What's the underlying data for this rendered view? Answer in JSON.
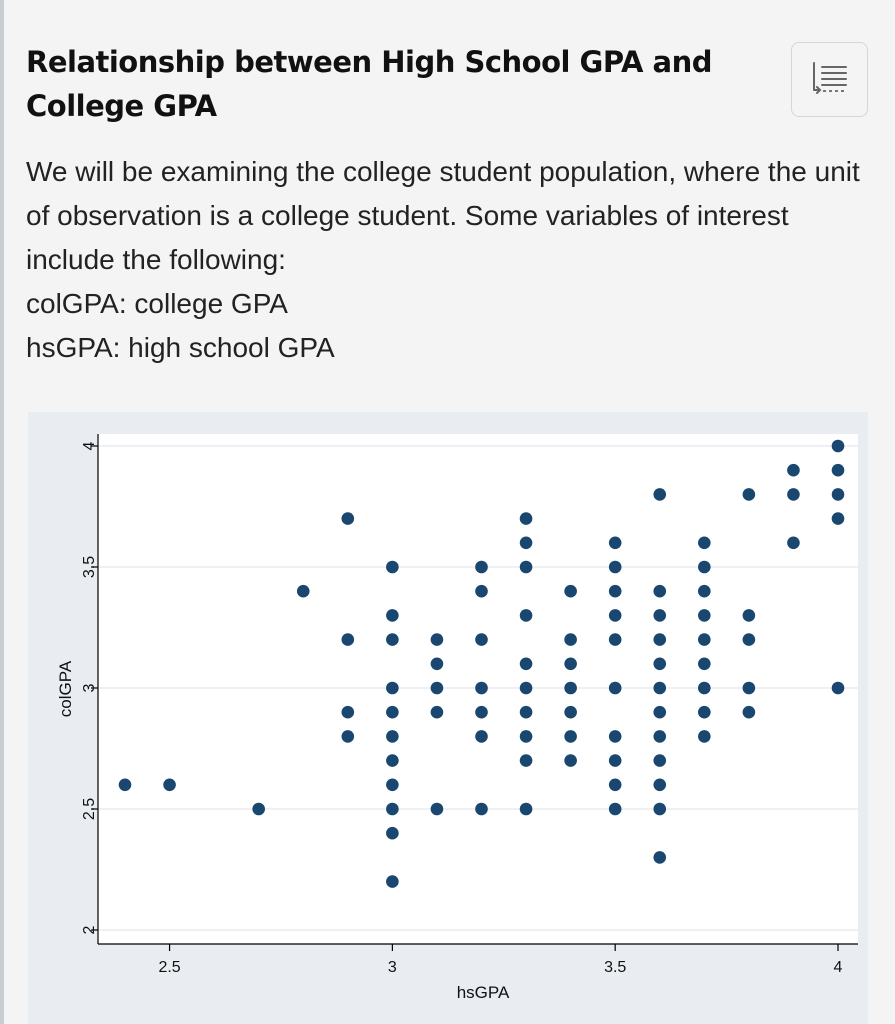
{
  "header": {
    "title": "Relationship between High School GPA and College GPA",
    "toc_button": {
      "icon": "table-of-contents-icon"
    }
  },
  "content": {
    "intro": "We will be examining the college student population, where the unit of observation is a college student. Some variables of interest include the following:",
    "variables": [
      "colGPA: college GPA",
      "hsGPA: high school GPA"
    ]
  },
  "chart_data": {
    "type": "scatter",
    "xlabel": "hsGPA",
    "ylabel": "colGPA",
    "xlim": [
      2.4,
      4.0
    ],
    "ylim": [
      2.0,
      4.0
    ],
    "xticks": [
      "2.5",
      "3",
      "3.5",
      "4"
    ],
    "yticks": [
      "2",
      "2.5",
      "3",
      "3.5",
      "4"
    ],
    "grid": true,
    "colors": {
      "marker": "#1a476f",
      "plot_bg": "#ffffff",
      "panel_bg": "#e9edf2",
      "grid": "#e8ecf1"
    },
    "points": [
      [
        2.4,
        2.6
      ],
      [
        2.5,
        2.6
      ],
      [
        2.7,
        2.5
      ],
      [
        2.8,
        3.4
      ],
      [
        2.9,
        3.7
      ],
      [
        2.9,
        3.2
      ],
      [
        2.9,
        2.9
      ],
      [
        2.9,
        2.8
      ],
      [
        3.0,
        3.5
      ],
      [
        3.0,
        3.3
      ],
      [
        3.0,
        3.2
      ],
      [
        3.0,
        3.0
      ],
      [
        3.0,
        2.9
      ],
      [
        3.0,
        2.8
      ],
      [
        3.0,
        2.7
      ],
      [
        3.0,
        2.6
      ],
      [
        3.0,
        2.5
      ],
      [
        3.0,
        2.4
      ],
      [
        3.0,
        2.2
      ],
      [
        3.1,
        3.2
      ],
      [
        3.1,
        3.1
      ],
      [
        3.1,
        3.0
      ],
      [
        3.1,
        2.9
      ],
      [
        3.1,
        2.5
      ],
      [
        3.2,
        3.5
      ],
      [
        3.2,
        3.4
      ],
      [
        3.2,
        3.2
      ],
      [
        3.2,
        3.0
      ],
      [
        3.2,
        2.9
      ],
      [
        3.2,
        2.8
      ],
      [
        3.2,
        2.5
      ],
      [
        3.3,
        3.7
      ],
      [
        3.3,
        3.6
      ],
      [
        3.3,
        3.5
      ],
      [
        3.3,
        3.3
      ],
      [
        3.3,
        3.1
      ],
      [
        3.3,
        3.0
      ],
      [
        3.3,
        2.9
      ],
      [
        3.3,
        2.8
      ],
      [
        3.3,
        2.7
      ],
      [
        3.3,
        2.5
      ],
      [
        3.4,
        3.4
      ],
      [
        3.4,
        3.2
      ],
      [
        3.4,
        3.1
      ],
      [
        3.4,
        3.0
      ],
      [
        3.4,
        2.9
      ],
      [
        3.4,
        2.8
      ],
      [
        3.4,
        2.7
      ],
      [
        3.5,
        3.6
      ],
      [
        3.5,
        3.5
      ],
      [
        3.5,
        3.4
      ],
      [
        3.5,
        3.3
      ],
      [
        3.5,
        3.2
      ],
      [
        3.5,
        3.0
      ],
      [
        3.5,
        2.8
      ],
      [
        3.5,
        2.7
      ],
      [
        3.5,
        2.6
      ],
      [
        3.5,
        2.5
      ],
      [
        3.6,
        3.8
      ],
      [
        3.6,
        3.4
      ],
      [
        3.6,
        3.3
      ],
      [
        3.6,
        3.2
      ],
      [
        3.6,
        3.1
      ],
      [
        3.6,
        3.0
      ],
      [
        3.6,
        2.9
      ],
      [
        3.6,
        2.8
      ],
      [
        3.6,
        2.7
      ],
      [
        3.6,
        2.6
      ],
      [
        3.6,
        2.5
      ],
      [
        3.6,
        2.3
      ],
      [
        3.7,
        3.6
      ],
      [
        3.7,
        3.5
      ],
      [
        3.7,
        3.4
      ],
      [
        3.7,
        3.3
      ],
      [
        3.7,
        3.2
      ],
      [
        3.7,
        3.1
      ],
      [
        3.7,
        3.0
      ],
      [
        3.7,
        2.9
      ],
      [
        3.7,
        2.8
      ],
      [
        3.8,
        3.8
      ],
      [
        3.8,
        3.3
      ],
      [
        3.8,
        3.2
      ],
      [
        3.8,
        3.0
      ],
      [
        3.8,
        2.9
      ],
      [
        3.9,
        3.9
      ],
      [
        3.9,
        3.8
      ],
      [
        3.9,
        3.6
      ],
      [
        4.0,
        4.0
      ],
      [
        4.0,
        3.9
      ],
      [
        4.0,
        3.8
      ],
      [
        4.0,
        3.7
      ],
      [
        4.0,
        3.0
      ]
    ]
  }
}
